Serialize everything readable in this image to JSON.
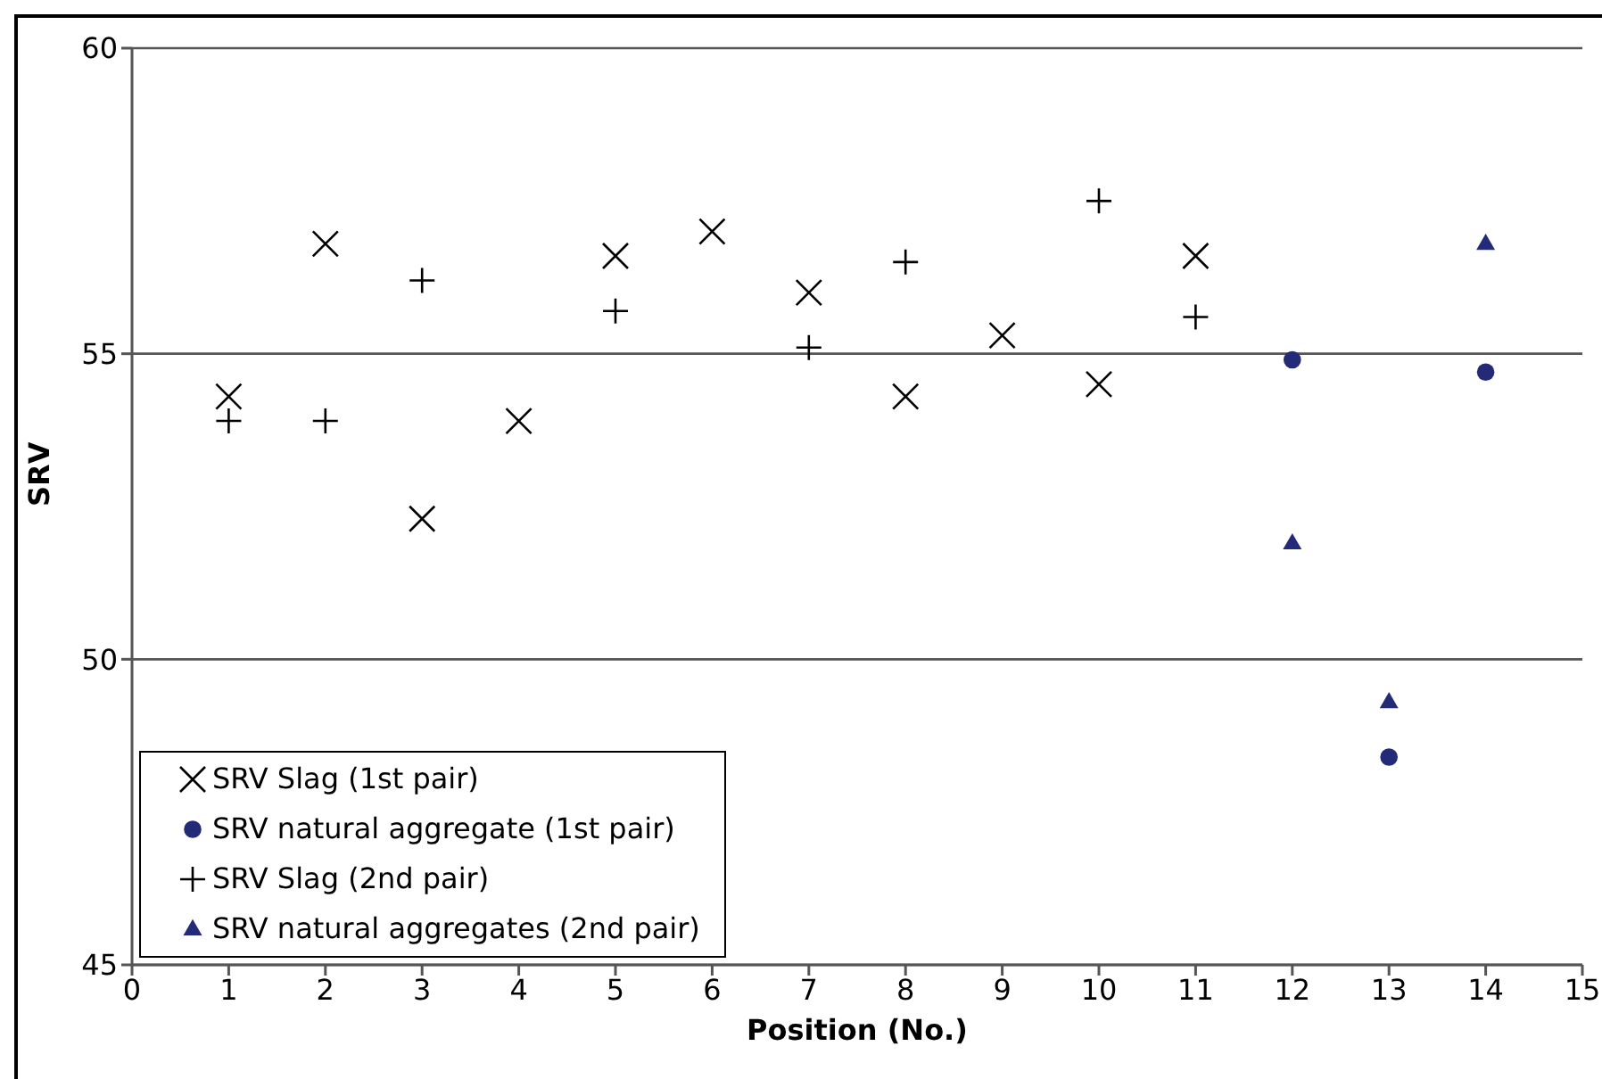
{
  "chart_data": {
    "type": "scatter",
    "xlabel": "Position (No.)",
    "ylabel": "SRV",
    "xlim": [
      0,
      15
    ],
    "xticks": [
      0,
      1,
      2,
      3,
      4,
      5,
      6,
      7,
      8,
      9,
      10,
      11,
      12,
      13,
      14,
      15
    ],
    "ylim": [
      45,
      60
    ],
    "yticks": [
      45,
      50,
      55,
      60
    ],
    "grid": "y",
    "legend": "bottom left",
    "series": [
      {
        "name": "SRV Slag (1st pair)",
        "color": "#000000",
        "marker": "x",
        "x": [
          1,
          2,
          3,
          4,
          5,
          6,
          7,
          8,
          9,
          10,
          11
        ],
        "values": [
          54.3,
          56.8,
          52.3,
          53.9,
          56.6,
          57.0,
          56.0,
          54.3,
          55.3,
          54.5,
          56.6
        ]
      },
      {
        "name": "SRV natural aggregate (1st pair)",
        "color": "#232a78",
        "marker": "circle",
        "x": [
          12,
          13,
          14
        ],
        "values": [
          54.9,
          48.4,
          54.7
        ]
      },
      {
        "name": "SRV Slag (2nd pair)",
        "color": "#000000",
        "marker": "plus",
        "x": [
          1,
          2,
          3,
          5,
          7,
          8,
          10,
          11
        ],
        "values": [
          53.9,
          53.9,
          56.2,
          55.7,
          55.1,
          56.5,
          57.5,
          55.6
        ]
      },
      {
        "name": "SRV natural aggregates (2nd pair)",
        "color": "#232a78",
        "marker": "triangle",
        "x": [
          12,
          13,
          14
        ],
        "values": [
          51.9,
          49.3,
          56.8
        ]
      }
    ]
  }
}
